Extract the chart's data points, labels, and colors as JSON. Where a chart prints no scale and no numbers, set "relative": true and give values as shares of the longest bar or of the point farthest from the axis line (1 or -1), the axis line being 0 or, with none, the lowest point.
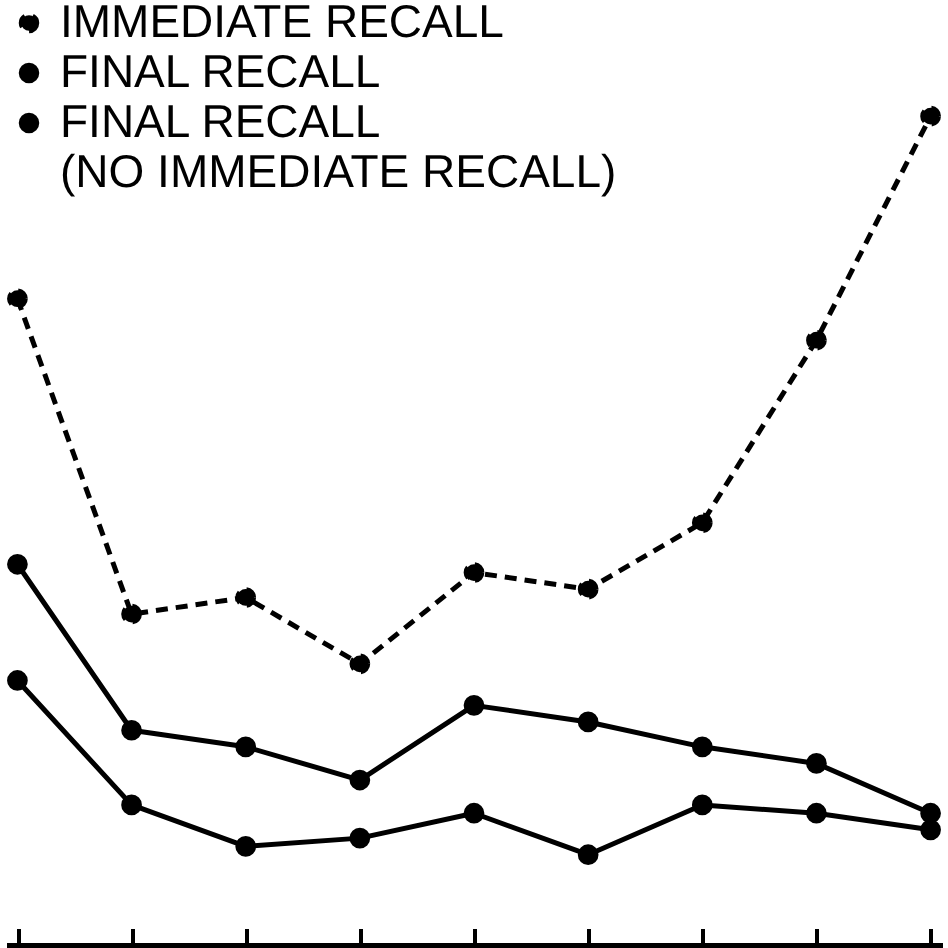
{
  "chart_data": {
    "type": "line",
    "relative": true,
    "categories": [
      null,
      null,
      null,
      null,
      null,
      null,
      null,
      null,
      null
    ],
    "series": [
      {
        "name": "IMMEDIATE RECALL",
        "color": "#000000",
        "line_style": "dashed",
        "marker": "circle",
        "values": [
          0.78,
          0.4,
          0.42,
          0.34,
          0.45,
          0.43,
          0.51,
          0.73,
          1
        ]
      },
      {
        "name": "FINAL RECALL",
        "color": "#000000",
        "line_style": "solid",
        "marker": "circle",
        "values": [
          0.46,
          0.26,
          0.24,
          0.2,
          0.29,
          0.27,
          0.24,
          0.22,
          0.16
        ]
      },
      {
        "name": "FINAL RECALL\n(NO IMMEDIATE RECALL)",
        "color": "#000000",
        "line_style": "solid",
        "marker": "circle",
        "values": [
          0.32,
          0.17,
          0.12,
          0.13,
          0.16,
          0.11,
          0.17,
          0.16,
          0.14
        ]
      }
    ],
    "legend": "top left",
    "grid": false
  }
}
